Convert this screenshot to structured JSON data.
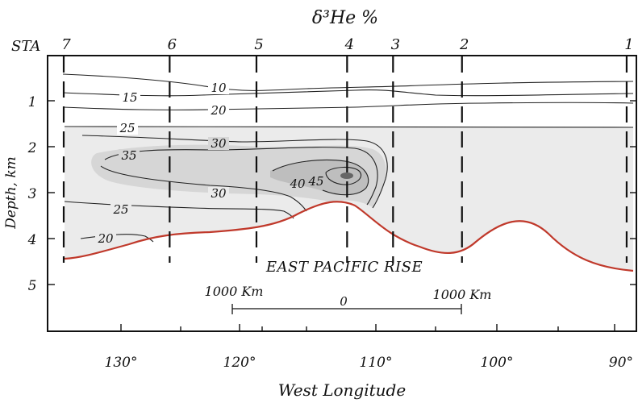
{
  "title": "δ³He %",
  "station_prefix": "STA",
  "stations": [
    {
      "label": "7",
      "lon": 134.3
    },
    {
      "label": "6",
      "lon": 126.0
    },
    {
      "label": "5",
      "lon": 119.2
    },
    {
      "label": "4",
      "lon": 112.1
    },
    {
      "label": "3",
      "lon": 108.5
    },
    {
      "label": "2",
      "lon": 103.1
    },
    {
      "label": "1",
      "lon": 90.2
    }
  ],
  "y_axis": {
    "label": "Depth, km",
    "ticks": [
      "1",
      "2",
      "3",
      "4",
      "5"
    ],
    "range": [
      0,
      6.5
    ]
  },
  "x_axis": {
    "label": "West Longitude",
    "ticks": [
      "130°",
      "120°",
      "110°",
      "100°",
      "90°"
    ],
    "range": [
      135.5,
      89.5
    ]
  },
  "contour_labels": [
    "10",
    "15",
    "20",
    "25",
    "30",
    "35",
    "30",
    "40",
    "45",
    "25",
    "20"
  ],
  "feature_label": "EAST PACIFIC RISE",
  "scale_bar": {
    "left": "1000 Km",
    "center": "0",
    "right": "1000 Km"
  },
  "colors": {
    "seafloor": "#c0392b",
    "shade_light": "#ebebeb",
    "shade_mid": "#d6d6d6",
    "shade_dark": "#bebebe",
    "core": "#666666"
  }
}
